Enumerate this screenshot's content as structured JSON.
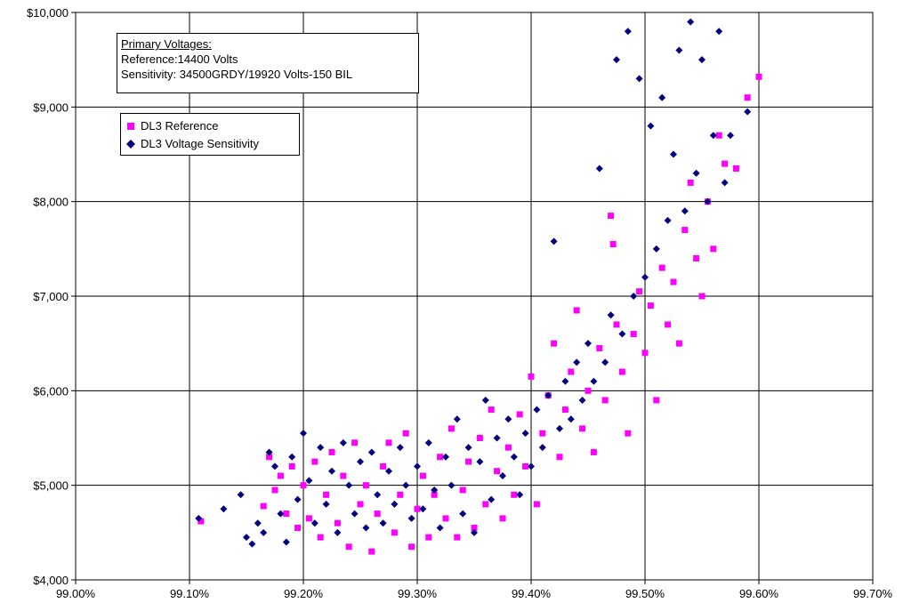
{
  "chart_data": {
    "type": "scatter",
    "title": "",
    "xlabel": "",
    "ylabel": "",
    "xlim": [
      99.0,
      99.7
    ],
    "ylim": [
      4000,
      10000
    ],
    "x_ticks": [
      "99.00%",
      "99.10%",
      "99.20%",
      "99.30%",
      "99.40%",
      "99.50%",
      "99.60%",
      "99.70%"
    ],
    "y_ticks": [
      "$4,000",
      "$5,000",
      "$6,000",
      "$7,000",
      "$8,000",
      "$9,000",
      "$10,000"
    ],
    "grid": true,
    "legend_position": "top-left",
    "annotation": {
      "title": "Primary Voltages:",
      "line1": "Reference:14400 Volts",
      "line2": "Sensitivity: 34500GRDY/19920 Volts-150 BIL"
    },
    "series": [
      {
        "name": "DL3 Reference",
        "color": "#ff00ff",
        "marker": "square",
        "points": [
          [
            99.11,
            4620
          ],
          [
            99.165,
            4780
          ],
          [
            99.17,
            5300
          ],
          [
            99.175,
            4950
          ],
          [
            99.18,
            5100
          ],
          [
            99.185,
            4700
          ],
          [
            99.19,
            5200
          ],
          [
            99.195,
            4550
          ],
          [
            99.2,
            5000
          ],
          [
            99.205,
            4650
          ],
          [
            99.21,
            5250
          ],
          [
            99.215,
            4450
          ],
          [
            99.22,
            4900
          ],
          [
            99.225,
            5350
          ],
          [
            99.23,
            4600
          ],
          [
            99.235,
            5100
          ],
          [
            99.24,
            4350
          ],
          [
            99.245,
            5450
          ],
          [
            99.25,
            4800
          ],
          [
            99.255,
            5000
          ],
          [
            99.26,
            4300
          ],
          [
            99.265,
            4700
          ],
          [
            99.27,
            5200
          ],
          [
            99.275,
            5450
          ],
          [
            99.28,
            4500
          ],
          [
            99.285,
            4900
          ],
          [
            99.29,
            5550
          ],
          [
            99.295,
            4350
          ],
          [
            99.3,
            4750
          ],
          [
            99.305,
            5100
          ],
          [
            99.31,
            4450
          ],
          [
            99.315,
            4900
          ],
          [
            99.32,
            5300
          ],
          [
            99.325,
            4650
          ],
          [
            99.33,
            5600
          ],
          [
            99.335,
            4450
          ],
          [
            99.34,
            4950
          ],
          [
            99.345,
            5250
          ],
          [
            99.35,
            4550
          ],
          [
            99.355,
            5500
          ],
          [
            99.36,
            4800
          ],
          [
            99.365,
            5800
          ],
          [
            99.37,
            5150
          ],
          [
            99.375,
            4650
          ],
          [
            99.38,
            5400
          ],
          [
            99.385,
            4900
          ],
          [
            99.39,
            5750
          ],
          [
            99.395,
            5200
          ],
          [
            99.4,
            6150
          ],
          [
            99.405,
            4800
          ],
          [
            99.41,
            5550
          ],
          [
            99.415,
            5950
          ],
          [
            99.42,
            6500
          ],
          [
            99.425,
            5300
          ],
          [
            99.43,
            5800
          ],
          [
            99.435,
            6200
          ],
          [
            99.44,
            6850
          ],
          [
            99.445,
            5600
          ],
          [
            99.45,
            6000
          ],
          [
            99.455,
            5350
          ],
          [
            99.46,
            6450
          ],
          [
            99.465,
            5900
          ],
          [
            99.47,
            7850
          ],
          [
            99.472,
            7550
          ],
          [
            99.475,
            6700
          ],
          [
            99.48,
            6200
          ],
          [
            99.485,
            5550
          ],
          [
            99.49,
            6600
          ],
          [
            99.495,
            7050
          ],
          [
            99.5,
            6400
          ],
          [
            99.505,
            6900
          ],
          [
            99.51,
            5900
          ],
          [
            99.515,
            7300
          ],
          [
            99.52,
            6700
          ],
          [
            99.525,
            7150
          ],
          [
            99.53,
            6500
          ],
          [
            99.535,
            7700
          ],
          [
            99.54,
            8200
          ],
          [
            99.545,
            7400
          ],
          [
            99.55,
            7000
          ],
          [
            99.555,
            8000
          ],
          [
            99.56,
            7500
          ],
          [
            99.565,
            8700
          ],
          [
            99.57,
            8400
          ],
          [
            99.58,
            8350
          ],
          [
            99.59,
            9100
          ],
          [
            99.6,
            9320
          ]
        ]
      },
      {
        "name": "DL3 Voltage Sensitivity",
        "color": "#000080",
        "marker": "diamond",
        "points": [
          [
            99.108,
            4650
          ],
          [
            99.13,
            4750
          ],
          [
            99.145,
            4900
          ],
          [
            99.15,
            4450
          ],
          [
            99.155,
            4380
          ],
          [
            99.16,
            4600
          ],
          [
            99.165,
            4500
          ],
          [
            99.17,
            5350
          ],
          [
            99.175,
            5200
          ],
          [
            99.18,
            4700
          ],
          [
            99.185,
            4400
          ],
          [
            99.19,
            5300
          ],
          [
            99.195,
            4850
          ],
          [
            99.2,
            5550
          ],
          [
            99.205,
            5050
          ],
          [
            99.21,
            4600
          ],
          [
            99.215,
            5400
          ],
          [
            99.22,
            4800
          ],
          [
            99.225,
            5150
          ],
          [
            99.23,
            4500
          ],
          [
            99.235,
            5450
          ],
          [
            99.24,
            5000
          ],
          [
            99.245,
            4700
          ],
          [
            99.25,
            5250
          ],
          [
            99.255,
            4550
          ],
          [
            99.26,
            5350
          ],
          [
            99.265,
            4900
          ],
          [
            99.27,
            4600
          ],
          [
            99.275,
            5150
          ],
          [
            99.28,
            4800
          ],
          [
            99.285,
            5400
          ],
          [
            99.29,
            5000
          ],
          [
            99.295,
            4650
          ],
          [
            99.3,
            5200
          ],
          [
            99.305,
            4750
          ],
          [
            99.31,
            5450
          ],
          [
            99.315,
            4950
          ],
          [
            99.32,
            4550
          ],
          [
            99.325,
            5300
          ],
          [
            99.33,
            5000
          ],
          [
            99.335,
            5700
          ],
          [
            99.34,
            4700
          ],
          [
            99.345,
            5400
          ],
          [
            99.35,
            4500
          ],
          [
            99.355,
            5250
          ],
          [
            99.36,
            5900
          ],
          [
            99.365,
            4850
          ],
          [
            99.37,
            5500
          ],
          [
            99.375,
            5100
          ],
          [
            99.38,
            5700
          ],
          [
            99.385,
            5300
          ],
          [
            99.39,
            4900
          ],
          [
            99.395,
            5550
          ],
          [
            99.4,
            5200
          ],
          [
            99.405,
            5800
          ],
          [
            99.41,
            5400
          ],
          [
            99.415,
            5950
          ],
          [
            99.42,
            7580
          ],
          [
            99.425,
            5600
          ],
          [
            99.43,
            6100
          ],
          [
            99.435,
            5700
          ],
          [
            99.44,
            6300
          ],
          [
            99.445,
            5900
          ],
          [
            99.45,
            6500
          ],
          [
            99.455,
            6100
          ],
          [
            99.46,
            8350
          ],
          [
            99.465,
            6300
          ],
          [
            99.47,
            6800
          ],
          [
            99.475,
            9500
          ],
          [
            99.48,
            6600
          ],
          [
            99.485,
            9800
          ],
          [
            99.49,
            7000
          ],
          [
            99.495,
            9300
          ],
          [
            99.5,
            7200
          ],
          [
            99.505,
            8800
          ],
          [
            99.51,
            7500
          ],
          [
            99.515,
            9100
          ],
          [
            99.52,
            7800
          ],
          [
            99.525,
            8500
          ],
          [
            99.53,
            9600
          ],
          [
            99.535,
            7900
          ],
          [
            99.54,
            9900
          ],
          [
            99.545,
            8300
          ],
          [
            99.55,
            9500
          ],
          [
            99.555,
            8000
          ],
          [
            99.56,
            8700
          ],
          [
            99.565,
            9800
          ],
          [
            99.57,
            8200
          ],
          [
            99.575,
            8700
          ],
          [
            99.59,
            8950
          ]
        ]
      }
    ]
  }
}
